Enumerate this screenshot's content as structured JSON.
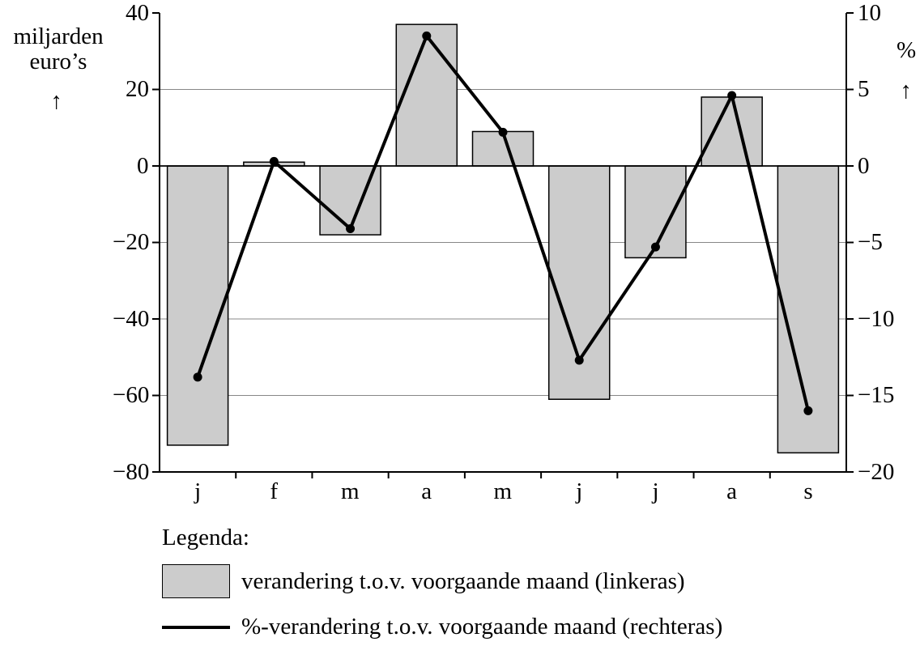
{
  "chart_data": {
    "type": "bar",
    "categories": [
      "j",
      "f",
      "m",
      "a",
      "m",
      "j",
      "j",
      "a",
      "s"
    ],
    "series": [
      {
        "name": "verandering t.o.v. voorgaande maand (linkeras)",
        "type": "bar",
        "axis": "left",
        "values": [
          -73,
          1,
          -18,
          37,
          9,
          -61,
          -24,
          18,
          -75
        ]
      },
      {
        "name": "%-verandering t.o.v. voorgaande maand (rechteras)",
        "type": "line",
        "axis": "right",
        "values": [
          -13.8,
          0.3,
          -4.1,
          8.5,
          2.2,
          -12.7,
          -5.3,
          4.6,
          -16.0
        ]
      }
    ],
    "left_axis": {
      "label_line1": "miljarden",
      "label_line2": "euro’s",
      "arrow": "↑",
      "ylim": [
        -80,
        40
      ],
      "ticks": [
        40,
        20,
        0,
        -20,
        -40,
        -60,
        -80
      ],
      "tick_labels": [
        "40",
        "20",
        "0",
        "−20",
        "−40",
        "−60",
        "−80"
      ]
    },
    "right_axis": {
      "label": "%",
      "arrow": "↑",
      "ylim": [
        -20,
        10
      ],
      "ticks": [
        10,
        5,
        0,
        -5,
        -10,
        -15,
        -20
      ],
      "tick_labels": [
        "10",
        "5",
        "0",
        "−5",
        "−10",
        "−15",
        "−20"
      ]
    },
    "grid": true,
    "colors": {
      "bar_fill": "#cccccc",
      "line": "#000000",
      "grid": "#888888"
    }
  },
  "legend": {
    "title": "Legenda:",
    "bar_label": "verandering t.o.v. voorgaande maand (linkeras)",
    "line_label": "%-verandering t.o.v. voorgaande maand (rechteras)"
  }
}
